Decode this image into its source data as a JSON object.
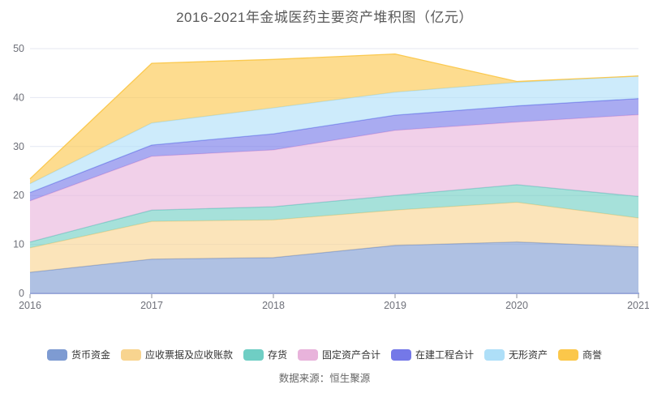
{
  "footer": {
    "source": "数据来源：恒生聚源"
  },
  "chart_data": {
    "type": "area",
    "stacked": true,
    "title": "2016-2021年金城医药主要资产堆积图（亿元）",
    "unit": "亿元",
    "categories": [
      "2016",
      "2017",
      "2018",
      "2019",
      "2020",
      "2021"
    ],
    "series": [
      {
        "name": "货币资金",
        "color": "#7E9BD2",
        "values": [
          4.3,
          7.0,
          7.3,
          9.8,
          10.5,
          9.5
        ]
      },
      {
        "name": "应收票据及应收账款",
        "color": "#F8D48F",
        "values": [
          5.0,
          7.7,
          7.7,
          7.2,
          8.1,
          5.9
        ]
      },
      {
        "name": "存货",
        "color": "#6FCEC4",
        "values": [
          1.2,
          2.3,
          2.7,
          3.0,
          3.6,
          4.4
        ]
      },
      {
        "name": "固定资产合计",
        "color": "#E8B3DB",
        "values": [
          8.4,
          11.0,
          11.6,
          13.3,
          12.8,
          16.7
        ]
      },
      {
        "name": "在建工程合计",
        "color": "#7478E8",
        "values": [
          1.7,
          2.3,
          3.3,
          3.1,
          3.3,
          3.3
        ]
      },
      {
        "name": "无形资产",
        "color": "#AEDFF8",
        "values": [
          1.8,
          4.5,
          5.3,
          4.7,
          4.8,
          4.6
        ]
      },
      {
        "name": "商誉",
        "color": "#FBC74A",
        "values": [
          1.0,
          12.2,
          9.9,
          7.8,
          0.2,
          0.0
        ]
      }
    ],
    "ylim": [
      0,
      50
    ],
    "y_ticks": [
      0,
      10,
      20,
      30,
      40,
      50
    ],
    "y_tick_labels": [
      "0",
      "10",
      "20",
      "30",
      "40",
      "50"
    ],
    "grid": true,
    "legend_position": "bottom",
    "style": {
      "grid_color": "#E4E7F2",
      "axis_line_color": "#9AA9DA",
      "tick_color": "#8A8E99",
      "axis_label_color": "#6E7079",
      "title_color": "#595959",
      "area_opacity": 0.62
    }
  }
}
